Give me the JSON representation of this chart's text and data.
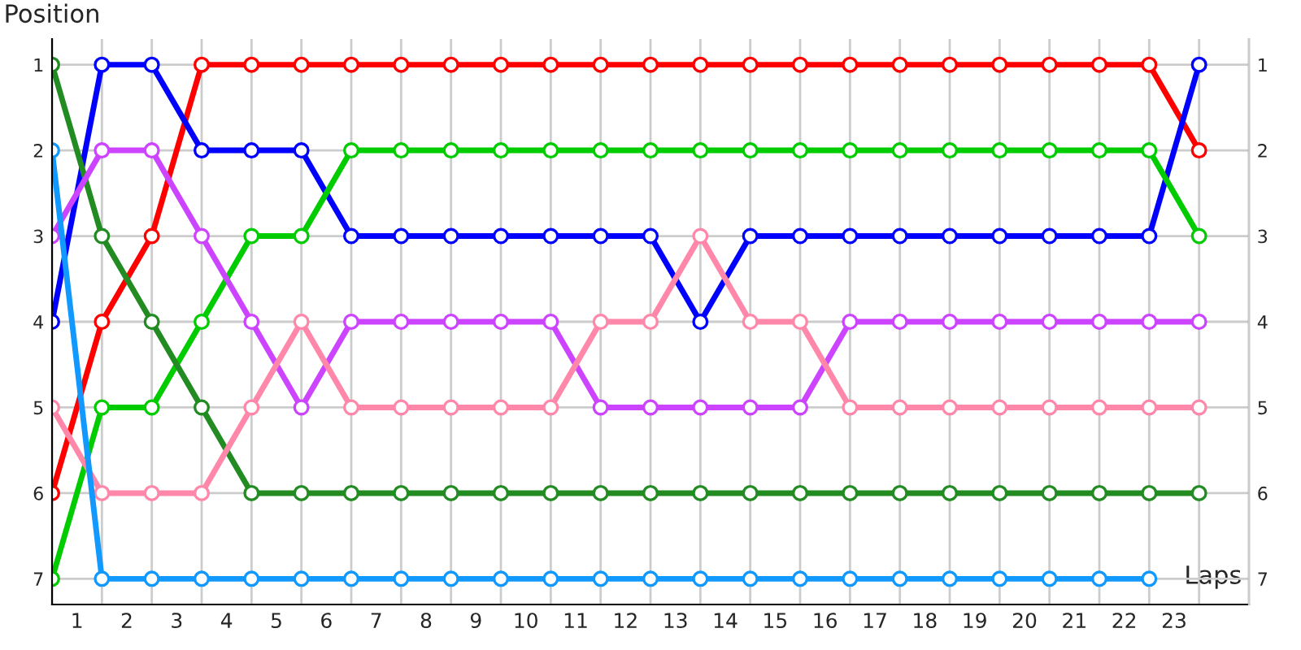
{
  "chart_data": {
    "type": "line",
    "xlabel": "Laps",
    "ylabel": "Position",
    "x": [
      0,
      1,
      2,
      3,
      4,
      5,
      6,
      7,
      8,
      9,
      10,
      11,
      12,
      13,
      14,
      15,
      16,
      17,
      18,
      19,
      20,
      21,
      22,
      23
    ],
    "series": [
      {
        "color": "#ff0000",
        "values": [
          6,
          4,
          3,
          1,
          1,
          1,
          1,
          1,
          1,
          1,
          1,
          1,
          1,
          1,
          1,
          1,
          1,
          1,
          1,
          1,
          1,
          1,
          1,
          2
        ]
      },
      {
        "color": "#0000ff",
        "values": [
          4,
          1,
          1,
          2,
          2,
          2,
          3,
          3,
          3,
          3,
          3,
          3,
          3,
          4,
          3,
          3,
          3,
          3,
          3,
          3,
          3,
          3,
          3,
          1
        ]
      },
      {
        "color": "#00cc00",
        "values": [
          7,
          5,
          5,
          4,
          3,
          3,
          2,
          2,
          2,
          2,
          2,
          2,
          2,
          2,
          2,
          2,
          2,
          2,
          2,
          2,
          2,
          2,
          2,
          3
        ]
      },
      {
        "color": "#228b22",
        "values": [
          1,
          3,
          4,
          5,
          6,
          6,
          6,
          6,
          6,
          6,
          6,
          6,
          6,
          6,
          6,
          6,
          6,
          6,
          6,
          6,
          6,
          6,
          6,
          6
        ]
      },
      {
        "color": "#cc44ff",
        "values": [
          3,
          2,
          2,
          3,
          4,
          5,
          4,
          4,
          4,
          4,
          4,
          5,
          5,
          5,
          5,
          5,
          4,
          4,
          4,
          4,
          4,
          4,
          4,
          4
        ]
      },
      {
        "color": "#ff88aa",
        "values": [
          5,
          6,
          6,
          6,
          5,
          4,
          5,
          5,
          5,
          5,
          5,
          4,
          4,
          3,
          4,
          4,
          5,
          5,
          5,
          5,
          5,
          5,
          5,
          5
        ]
      },
      {
        "color": "#1199ff",
        "values": [
          2,
          7,
          7,
          7,
          7,
          7,
          7,
          7,
          7,
          7,
          7,
          7,
          7,
          7,
          7,
          7,
          7,
          7,
          7,
          7,
          7,
          7,
          7,
          null
        ]
      }
    ],
    "xlim": [
      0,
      24
    ],
    "xticks": [
      {
        "value": 0.5,
        "label": "1"
      },
      {
        "value": 1.5,
        "label": "2"
      },
      {
        "value": 2.5,
        "label": "3"
      },
      {
        "value": 3.5,
        "label": "4"
      },
      {
        "value": 4.5,
        "label": "5"
      },
      {
        "value": 5.5,
        "label": "6"
      },
      {
        "value": 6.5,
        "label": "7"
      },
      {
        "value": 7.5,
        "label": "8"
      },
      {
        "value": 8.5,
        "label": "9"
      },
      {
        "value": 9.5,
        "label": "10"
      },
      {
        "value": 10.5,
        "label": "11"
      },
      {
        "value": 11.5,
        "label": "12"
      },
      {
        "value": 12.5,
        "label": "13"
      },
      {
        "value": 13.5,
        "label": "14"
      },
      {
        "value": 14.5,
        "label": "15"
      },
      {
        "value": 15.5,
        "label": "16"
      },
      {
        "value": 16.5,
        "label": "17"
      },
      {
        "value": 17.5,
        "label": "18"
      },
      {
        "value": 18.5,
        "label": "19"
      },
      {
        "value": 19.5,
        "label": "20"
      },
      {
        "value": 20.5,
        "label": "21"
      },
      {
        "value": 21.5,
        "label": "22"
      },
      {
        "value": 22.5,
        "label": "23"
      }
    ],
    "ylim": [
      7.3,
      0.7
    ],
    "yticks": [
      1,
      2,
      3,
      4,
      5,
      6,
      7
    ],
    "y2lim": [
      7.3,
      0.7
    ],
    "y2ticks": [
      1,
      2,
      3,
      4,
      5,
      6,
      7
    ],
    "grid": true,
    "marker": "circle",
    "line_style": "solid"
  }
}
